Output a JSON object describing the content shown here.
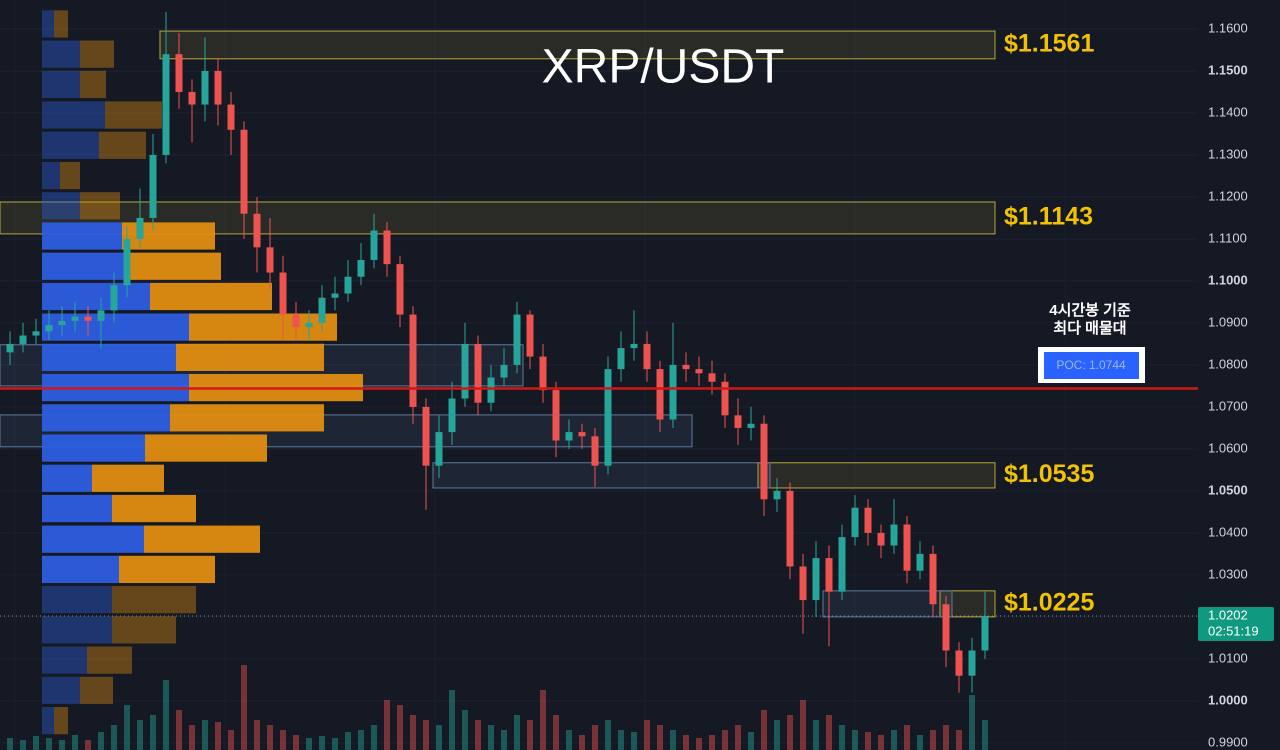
{
  "chart_data": {
    "type": "candlestick",
    "title": "XRP/USDT",
    "annotation": [
      "4시간봉 기준",
      "최다 매물대"
    ],
    "up_color": "#26a69a",
    "down_color": "#ef5350",
    "ylim": [
      0.9883,
      1.1669
    ],
    "yticks": [
      {
        "value": 1.16,
        "label": "1.1600"
      },
      {
        "value": 1.15,
        "label": "1.1500"
      },
      {
        "value": 1.14,
        "label": "1.1400"
      },
      {
        "value": 1.13,
        "label": "1.1300"
      },
      {
        "value": 1.12,
        "label": "1.1200"
      },
      {
        "value": 1.11,
        "label": "1.1100"
      },
      {
        "value": 1.1,
        "label": "1.1000"
      },
      {
        "value": 1.09,
        "label": "1.0900"
      },
      {
        "value": 1.08,
        "label": "1.0800"
      },
      {
        "value": 1.07,
        "label": "1.0700"
      },
      {
        "value": 1.06,
        "label": "1.0600"
      },
      {
        "value": 1.05,
        "label": "1.0500"
      },
      {
        "value": 1.04,
        "label": "1.0400"
      },
      {
        "value": 1.03,
        "label": "1.0300"
      },
      {
        "value": 1.02,
        "label": "1.0200"
      },
      {
        "value": 1.01,
        "label": "1.0100"
      },
      {
        "value": 1,
        "label": "1.0000"
      },
      {
        "value": 0.99,
        "label": "0.9900"
      }
    ],
    "open": [
      1.083,
      1.085,
      1.087,
      1.088,
      1.0895,
      1.0905,
      1.0915,
      1.0905,
      1.093,
      1.099,
      1.11,
      1.115,
      1.13,
      1.154,
      1.145,
      1.142,
      1.15,
      1.142,
      1.136,
      1.116,
      1.108,
      1.102,
      1.092,
      1.089,
      1.09,
      1.096,
      1.097,
      1.101,
      1.105,
      1.112,
      1.104,
      1.092,
      1.07,
      1.056,
      1.064,
      1.072,
      1.085,
      1.071,
      1.077,
      1.08,
      1.092,
      1.082,
      1.074,
      1.062,
      1.064,
      1.063,
      1.056,
      1.079,
      1.084,
      1.085,
      1.079,
      1.067,
      1.08,
      1.079,
      1.078,
      1.076,
      1.068,
      1.065,
      1.066,
      1.048,
      1.05,
      1.032,
      1.024,
      1.034,
      1.026,
      1.039,
      1.046,
      1.04,
      1.037,
      1.042,
      1.031,
      1.035,
      1.023,
      1.012,
      1.006,
      1.012
    ],
    "high": [
      1.088,
      1.09,
      1.091,
      1.093,
      1.094,
      1.095,
      1.094,
      1.096,
      1.102,
      1.113,
      1.122,
      1.135,
      1.164,
      1.159,
      1.148,
      1.158,
      1.153,
      1.145,
      1.138,
      1.12,
      1.115,
      1.106,
      1.095,
      1.093,
      1.099,
      1.101,
      1.105,
      1.109,
      1.116,
      1.114,
      1.106,
      1.094,
      1.072,
      1.068,
      1.076,
      1.09,
      1.087,
      1.08,
      1.084,
      1.095,
      1.093,
      1.085,
      1.076,
      1.067,
      1.066,
      1.065,
      1.082,
      1.088,
      1.093,
      1.088,
      1.081,
      1.09,
      1.083,
      1.082,
      1.081,
      1.078,
      1.072,
      1.07,
      1.068,
      1.053,
      1.052,
      1.035,
      1.038,
      1.037,
      1.042,
      1.049,
      1.048,
      1.042,
      1.048,
      1.044,
      1.038,
      1.037,
      1.025,
      1.014,
      1.015,
      1.026
    ],
    "low": [
      1.08,
      1.083,
      1.085,
      1.086,
      1.087,
      1.088,
      1.087,
      1.084,
      1.09,
      1.096,
      1.108,
      1.112,
      1.128,
      1.141,
      1.133,
      1.138,
      1.137,
      1.13,
      1.11,
      1.102,
      1.098,
      1.086,
      1.086,
      1.086,
      1.088,
      1.093,
      1.095,
      1.099,
      1.103,
      1.101,
      1.089,
      1.066,
      1.0455,
      1.053,
      1.061,
      1.07,
      1.068,
      1.069,
      1.075,
      1.078,
      1.079,
      1.071,
      1.058,
      1.06,
      1.06,
      1.051,
      1.054,
      1.076,
      1.081,
      1.076,
      1.064,
      1.065,
      1.076,
      1.075,
      1.073,
      1.065,
      1.061,
      1.062,
      1.044,
      1.045,
      1.029,
      1.016,
      1.02,
      1.013,
      1.024,
      1.037,
      1.037,
      1.034,
      1.035,
      1.028,
      1.029,
      1.02,
      1.008,
      1.002,
      1.002,
      1.01
    ],
    "close": [
      1.085,
      1.087,
      1.088,
      1.0895,
      1.0905,
      1.0915,
      1.0905,
      1.093,
      1.099,
      1.11,
      1.115,
      1.13,
      1.154,
      1.145,
      1.142,
      1.15,
      1.142,
      1.136,
      1.116,
      1.108,
      1.102,
      1.092,
      1.089,
      1.09,
      1.096,
      1.097,
      1.101,
      1.105,
      1.112,
      1.104,
      1.092,
      1.07,
      1.056,
      1.064,
      1.072,
      1.085,
      1.071,
      1.077,
      1.08,
      1.092,
      1.082,
      1.074,
      1.062,
      1.064,
      1.063,
      1.056,
      1.079,
      1.084,
      1.085,
      1.079,
      1.067,
      1.08,
      1.079,
      1.078,
      1.076,
      1.068,
      1.065,
      1.066,
      1.048,
      1.05,
      1.032,
      1.024,
      1.034,
      1.026,
      1.039,
      1.046,
      1.04,
      1.037,
      1.042,
      1.031,
      1.035,
      1.023,
      1.012,
      1.006,
      1.012,
      1.0202
    ],
    "volume": [
      12,
      10,
      14,
      12,
      10,
      15,
      10,
      18,
      25,
      45,
      30,
      35,
      70,
      40,
      25,
      30,
      28,
      20,
      85,
      30,
      25,
      20,
      15,
      12,
      14,
      12,
      18,
      20,
      25,
      50,
      45,
      35,
      30,
      25,
      60,
      40,
      30,
      25,
      20,
      35,
      30,
      60,
      35,
      20,
      15,
      25,
      30,
      20,
      18,
      30,
      25,
      20,
      15,
      12,
      15,
      20,
      25,
      18,
      40,
      30,
      35,
      50,
      30,
      35,
      25,
      20,
      18,
      15,
      20,
      25,
      15,
      20,
      25,
      20,
      55,
      30
    ],
    "profile": {
      "levels": [
        1.1612,
        1.154,
        1.1468,
        1.1395,
        1.1323,
        1.1251,
        1.1179,
        1.1107,
        1.1035,
        1.0963,
        1.089,
        1.0818,
        1.0746,
        1.0674,
        1.0602,
        1.053,
        1.0458,
        1.0385,
        1.0313,
        1.0241,
        1.0169,
        1.0097,
        1.0025,
        0.9953
      ],
      "buy": [
        12,
        38,
        38,
        63,
        57,
        18,
        38,
        80,
        82,
        108,
        147,
        134,
        147,
        128,
        103,
        50,
        70,
        102,
        77,
        70,
        70,
        45,
        38,
        12
      ],
      "sell": [
        14,
        34,
        26,
        57,
        47,
        20,
        40,
        93,
        97,
        122,
        148,
        148,
        174,
        154,
        122,
        72,
        84,
        116,
        96,
        84,
        64,
        45,
        33,
        14
      ],
      "value_area_high": 1.1143,
      "value_area_low": 1.0277
    },
    "zones": [
      {
        "color": "yellow",
        "top": 1.1595,
        "bottom": 1.1529,
        "start": 12,
        "label": "$1.1561"
      },
      {
        "color": "yellow",
        "top": 1.1188,
        "bottom": 1.1112,
        "start": 0,
        "label": "$1.1143"
      },
      {
        "color": "yellow",
        "top": 1.0567,
        "bottom": 1.0507,
        "start": 58,
        "label": "$1.0535"
      },
      {
        "color": "yellow",
        "top": 1.0262,
        "bottom": 1.02,
        "start": 72,
        "label": "$1.0225"
      },
      {
        "color": "blue",
        "top": 1.0848,
        "bottom": 1.075,
        "start": 0,
        "end": 39
      },
      {
        "color": "blue",
        "top": 1.0681,
        "bottom": 1.0605,
        "start": 0,
        "end": 52
      },
      {
        "color": "blue",
        "top": 1.0567,
        "bottom": 1.0507,
        "start": 33,
        "end": 58
      },
      {
        "color": "blue",
        "top": 1.0262,
        "bottom": 1.02,
        "start": 63,
        "end": 72
      }
    ],
    "poc": {
      "value": 1.0744,
      "label": "POC: 1.0744"
    },
    "last_price": 1.0202,
    "countdown": "02:51:19"
  }
}
